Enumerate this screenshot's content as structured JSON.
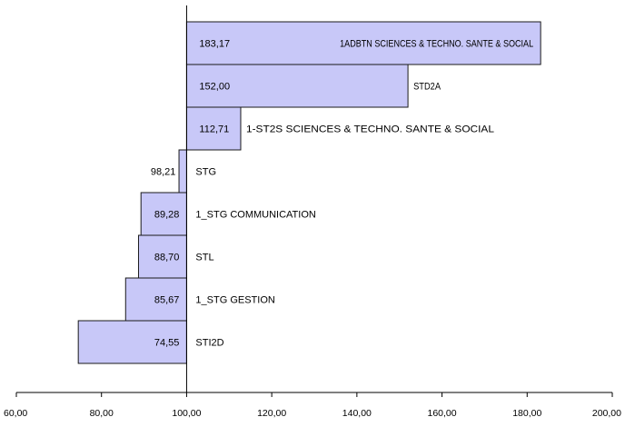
{
  "chart_data": {
    "type": "bar",
    "orientation": "horizontal",
    "baseline": 100,
    "xlim": [
      60,
      200
    ],
    "x_ticks": [
      60,
      80,
      100,
      120,
      140,
      160,
      180,
      200
    ],
    "x_tick_labels": [
      "60,00",
      "80,00",
      "100,00",
      "120,00",
      "140,00",
      "160,00",
      "180,00",
      "200,00"
    ],
    "categories": [
      "1ADBTN SCIENCES & TECHNO. SANTE & SOCIAL",
      "STD2A",
      "1-ST2S SCIENCES & TECHNO. SANTE & SOCIAL",
      "STG",
      "1_STG COMMUNICATION",
      "STL",
      "1_STG  GESTION",
      "STI2D"
    ],
    "values": [
      183.17,
      152.0,
      112.71,
      98.21,
      89.28,
      88.7,
      85.67,
      74.55
    ],
    "value_labels": [
      "183,17",
      "152,00",
      "112,71",
      "98,21",
      "89,28",
      "88,70",
      "85,67",
      "74,55"
    ],
    "bar_color": "#c8c8f8",
    "grid": false,
    "legend": "none"
  }
}
